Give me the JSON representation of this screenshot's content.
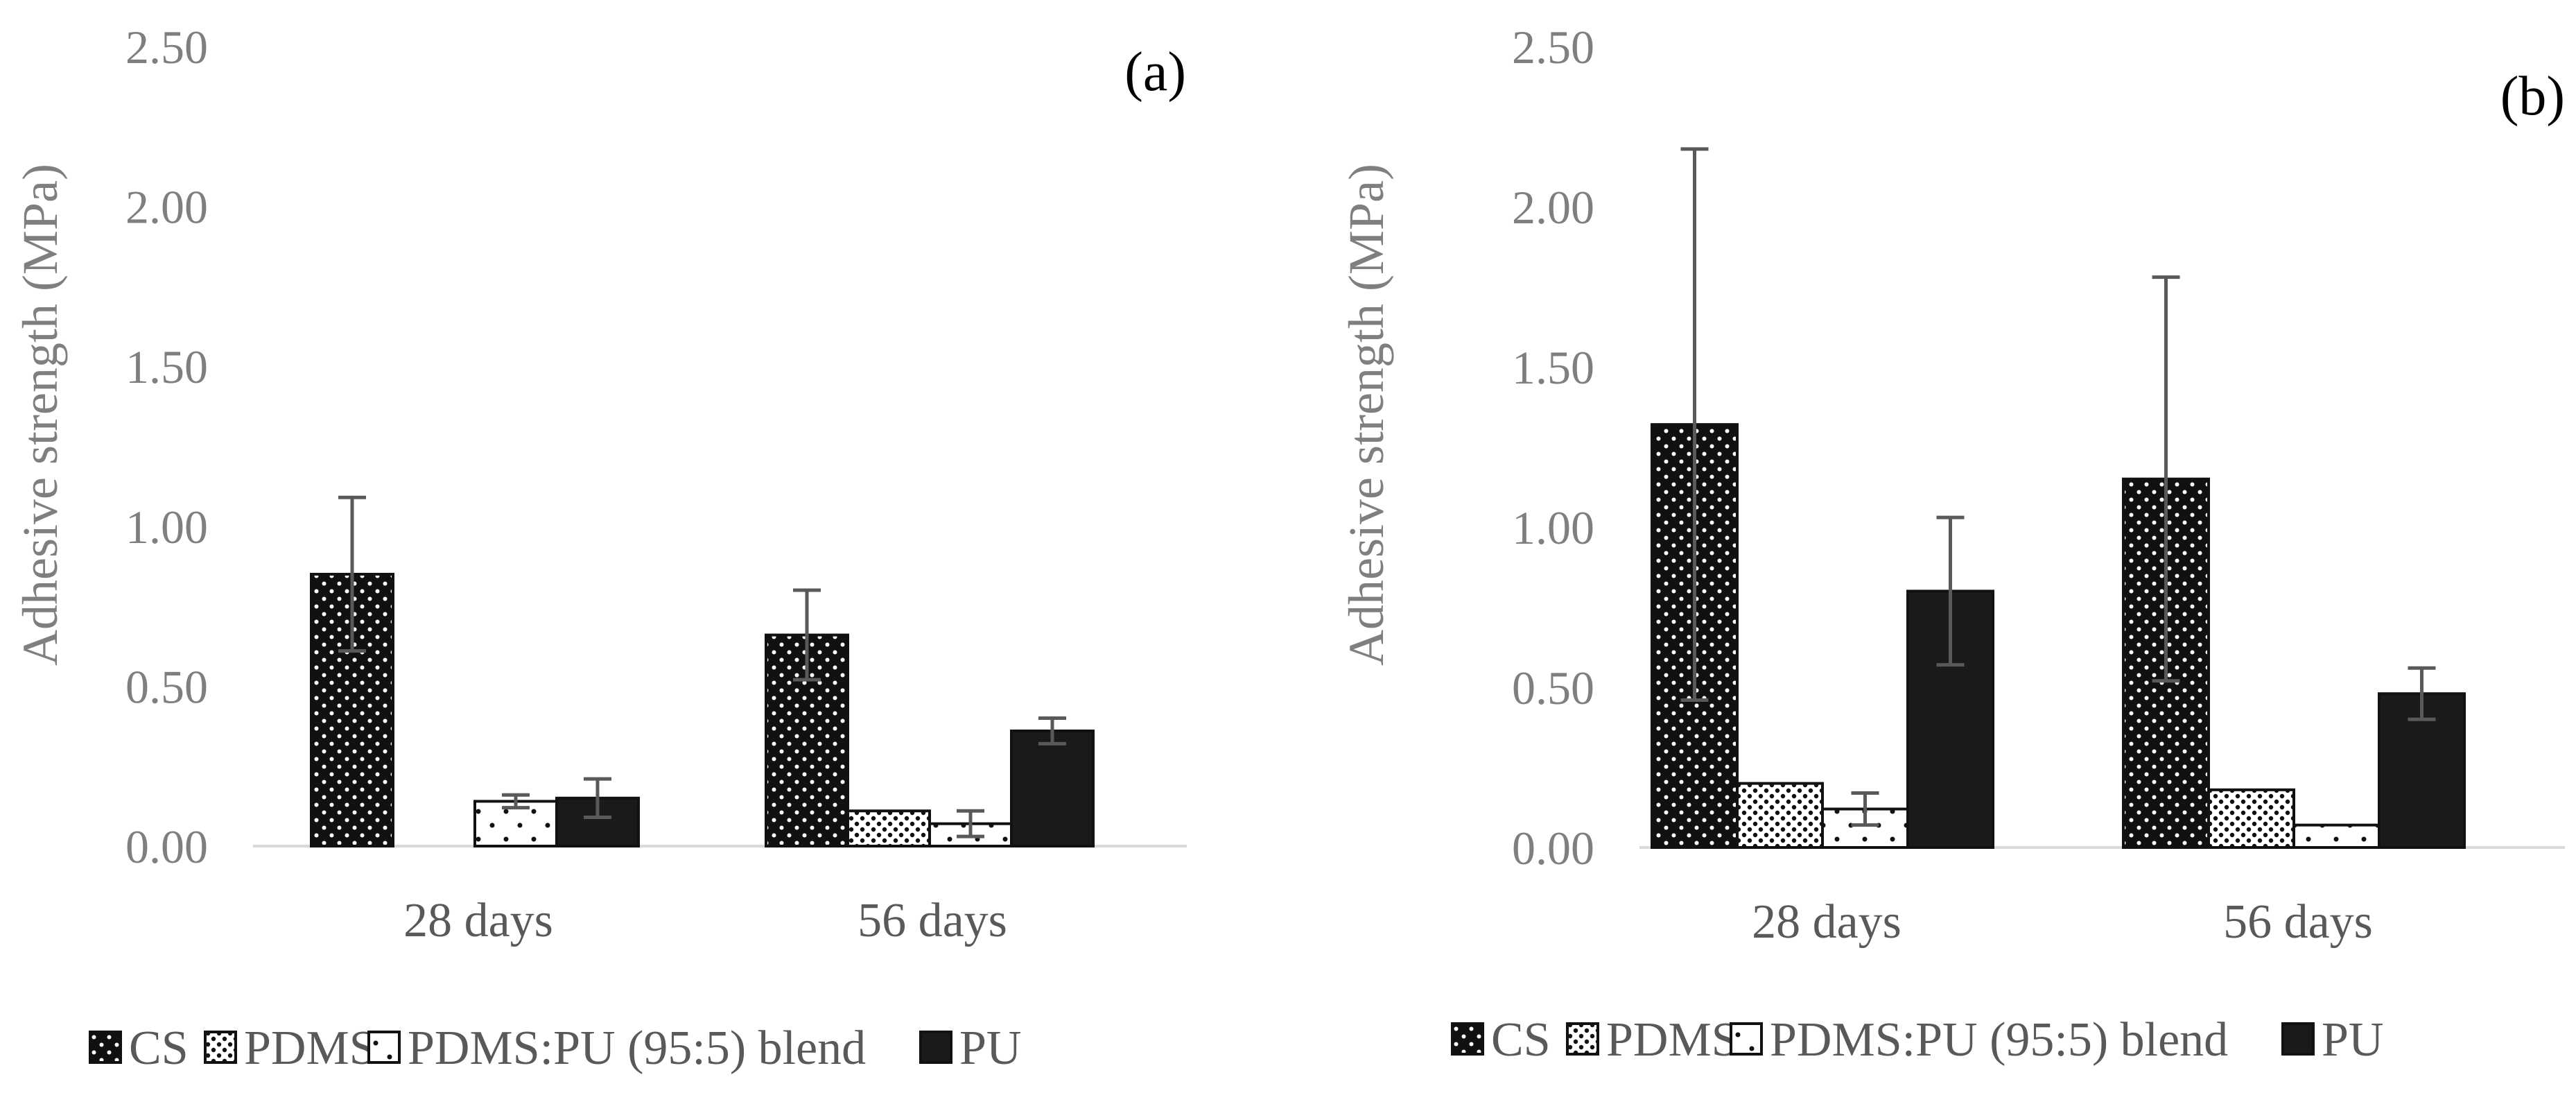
{
  "chart_data": [
    {
      "type": "bar",
      "panel_label": "(a)",
      "ylabel": "Adhesive strength (MPa)",
      "xlabel": "",
      "ylim": [
        0,
        2.5
      ],
      "yticks": [
        "0.00",
        "0.50",
        "1.00",
        "1.50",
        "2.00",
        "2.50"
      ],
      "categories": [
        "28 days",
        "56 days"
      ],
      "legend_position": "bottom",
      "series": [
        {
          "name": "CS",
          "pattern": "dots-dark",
          "values": [
            0.85,
            0.66
          ],
          "errors": [
            0.24,
            0.14
          ]
        },
        {
          "name": "PDMS",
          "pattern": "dots-light",
          "values": [
            0.0,
            0.11
          ],
          "errors": [
            0.0,
            0.0
          ]
        },
        {
          "name": "PDMS:PU (95:5) blend",
          "pattern": "dots-sparse",
          "values": [
            0.14,
            0.07
          ],
          "errors": [
            0.02,
            0.04
          ]
        },
        {
          "name": "PU",
          "pattern": "solid",
          "values": [
            0.15,
            0.36
          ],
          "errors": [
            0.06,
            0.04
          ]
        }
      ]
    },
    {
      "type": "bar",
      "panel_label": "(b)",
      "ylabel": "Adhesive strength (MPa)",
      "xlabel": "",
      "ylim": [
        0,
        2.5
      ],
      "yticks": [
        "0.00",
        "0.50",
        "1.00",
        "1.50",
        "2.00",
        "2.50"
      ],
      "categories": [
        "28 days",
        "56 days"
      ],
      "legend_position": "bottom",
      "series": [
        {
          "name": "CS",
          "pattern": "dots-dark",
          "values": [
            1.32,
            1.15
          ],
          "errors": [
            0.86,
            0.63
          ]
        },
        {
          "name": "PDMS",
          "pattern": "dots-light",
          "values": [
            0.2,
            0.18
          ],
          "errors": [
            0.0,
            0.0
          ]
        },
        {
          "name": "PDMS:PU (95:5) blend",
          "pattern": "dots-sparse",
          "values": [
            0.12,
            0.07
          ],
          "errors": [
            0.05,
            0.0
          ]
        },
        {
          "name": "PU",
          "pattern": "solid",
          "values": [
            0.8,
            0.48
          ],
          "errors": [
            0.23,
            0.08
          ]
        }
      ]
    }
  ]
}
